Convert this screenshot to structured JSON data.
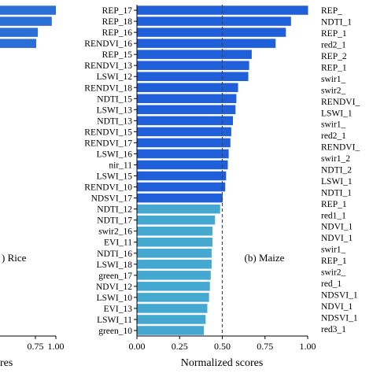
{
  "chart_data": [
    {
      "type": "bar",
      "orientation": "horizontal",
      "partial": true,
      "panel_label": ") Rice",
      "values": [
        1.0,
        0.95,
        0.78,
        0.76
      ],
      "xticks": [
        "0.75",
        "1.00"
      ],
      "xlabel": "res",
      "xlim": [
        0,
        1.0
      ],
      "colors": {
        "bar": "#2b6fd6"
      }
    },
    {
      "type": "bar",
      "orientation": "horizontal",
      "panel_label": "(b) Maize",
      "categories": [
        "REP_17",
        "REP_18",
        "REP_16",
        "RENDVI_16",
        "REP_15",
        "RENDVI_13",
        "LSWI_12",
        "RENDVI_18",
        "NDTI_15",
        "LSWI_13",
        "NDTI_13",
        "RENDVI_15",
        "RENDVI_17",
        "LSWI_16",
        "nir_11",
        "LSWI_15",
        "RENDVI_10",
        "NDSVI_17",
        "NDTI_12",
        "NDTI_17",
        "swir2_16",
        "EVI_11",
        "NDTI_16",
        "LSWI_18",
        "green_17",
        "NDVI_12",
        "LSWI_10",
        "EVI_13",
        "LSWI_11",
        "green_10"
      ],
      "values": [
        1.0,
        0.9,
        0.87,
        0.81,
        0.67,
        0.655,
        0.65,
        0.59,
        0.58,
        0.575,
        0.56,
        0.55,
        0.545,
        0.535,
        0.53,
        0.52,
        0.515,
        0.5,
        0.485,
        0.455,
        0.44,
        0.44,
        0.435,
        0.435,
        0.43,
        0.425,
        0.42,
        0.41,
        0.4,
        0.39
      ],
      "selected_count": 18,
      "xlabel": "Normalized scores",
      "xlim": [
        0,
        1.0
      ],
      "xticks": [
        "0.00",
        "0.25",
        "0.50",
        "0.75",
        "1.00"
      ],
      "threshold": 0.5,
      "colors": {
        "selected": "#1f5fd9",
        "unselected": "#45a8d0",
        "threshold": "#444444"
      }
    },
    {
      "type": "bar",
      "orientation": "horizontal",
      "partial": true,
      "labels": [
        "REP_",
        "NDTI_1",
        "REP_1",
        "red2_1",
        "REP_2",
        "REP_1",
        "swir1_",
        "swir2_",
        "RENDVI_",
        "LSWI_1",
        "swir1_",
        "red2_1",
        "RENDVI_",
        "swir1_2",
        "NDTI_2",
        "LSWI_1",
        "NDTI_1",
        "REP_1",
        "red1_1",
        "NDVI_1",
        "NDVI_1",
        "swir1_",
        "REP_1",
        "swir2_",
        "red_1",
        "NDSVI_1",
        "NDVI_1",
        "NDSVI_1",
        "red3_1"
      ]
    }
  ]
}
